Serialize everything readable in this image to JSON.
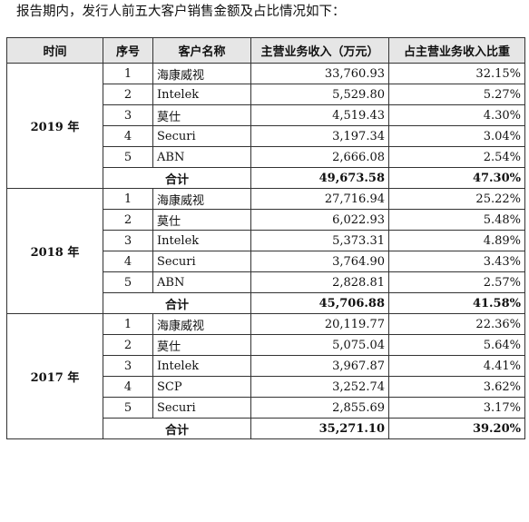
{
  "intro": "报告期内，发行人前五大客户销售金额及占比情况如下：",
  "headers": {
    "period": "时间",
    "index": "序号",
    "customer": "客户名称",
    "revenue": "主营业务收入（万元）",
    "share": "占主营业务收入比重"
  },
  "groups": [
    {
      "year": "2019 年",
      "rows": [
        {
          "idx": "1",
          "name": "海康威视",
          "revenue": "33,760.93",
          "share": "32.15%"
        },
        {
          "idx": "2",
          "name": "Intelek",
          "revenue": "5,529.80",
          "share": "5.27%"
        },
        {
          "idx": "3",
          "name": "莫仕",
          "revenue": "4,519.43",
          "share": "4.30%"
        },
        {
          "idx": "4",
          "name": "Securi",
          "revenue": "3,197.34",
          "share": "3.04%"
        },
        {
          "idx": "5",
          "name": "ABN",
          "revenue": "2,666.08",
          "share": "2.54%"
        }
      ],
      "total": {
        "label": "合计",
        "revenue": "49,673.58",
        "share": "47.30%"
      }
    },
    {
      "year": "2018 年",
      "rows": [
        {
          "idx": "1",
          "name": "海康威视",
          "revenue": "27,716.94",
          "share": "25.22%"
        },
        {
          "idx": "2",
          "name": "莫仕",
          "revenue": "6,022.93",
          "share": "5.48%"
        },
        {
          "idx": "3",
          "name": "Intelek",
          "revenue": "5,373.31",
          "share": "4.89%"
        },
        {
          "idx": "4",
          "name": "Securi",
          "revenue": "3,764.90",
          "share": "3.43%"
        },
        {
          "idx": "5",
          "name": "ABN",
          "revenue": "2,828.81",
          "share": "2.57%"
        }
      ],
      "total": {
        "label": "合计",
        "revenue": "45,706.88",
        "share": "41.58%"
      }
    },
    {
      "year": "2017 年",
      "rows": [
        {
          "idx": "1",
          "name": "海康威视",
          "revenue": "20,119.77",
          "share": "22.36%"
        },
        {
          "idx": "2",
          "name": "莫仕",
          "revenue": "5,075.04",
          "share": "5.64%"
        },
        {
          "idx": "3",
          "name": "Intelek",
          "revenue": "3,967.87",
          "share": "4.41%"
        },
        {
          "idx": "4",
          "name": "SCP",
          "revenue": "3,252.74",
          "share": "3.62%"
        },
        {
          "idx": "5",
          "name": "Securi",
          "revenue": "2,855.69",
          "share": "3.17%"
        }
      ],
      "total": {
        "label": "合计",
        "revenue": "35,271.10",
        "share": "39.20%"
      }
    }
  ]
}
